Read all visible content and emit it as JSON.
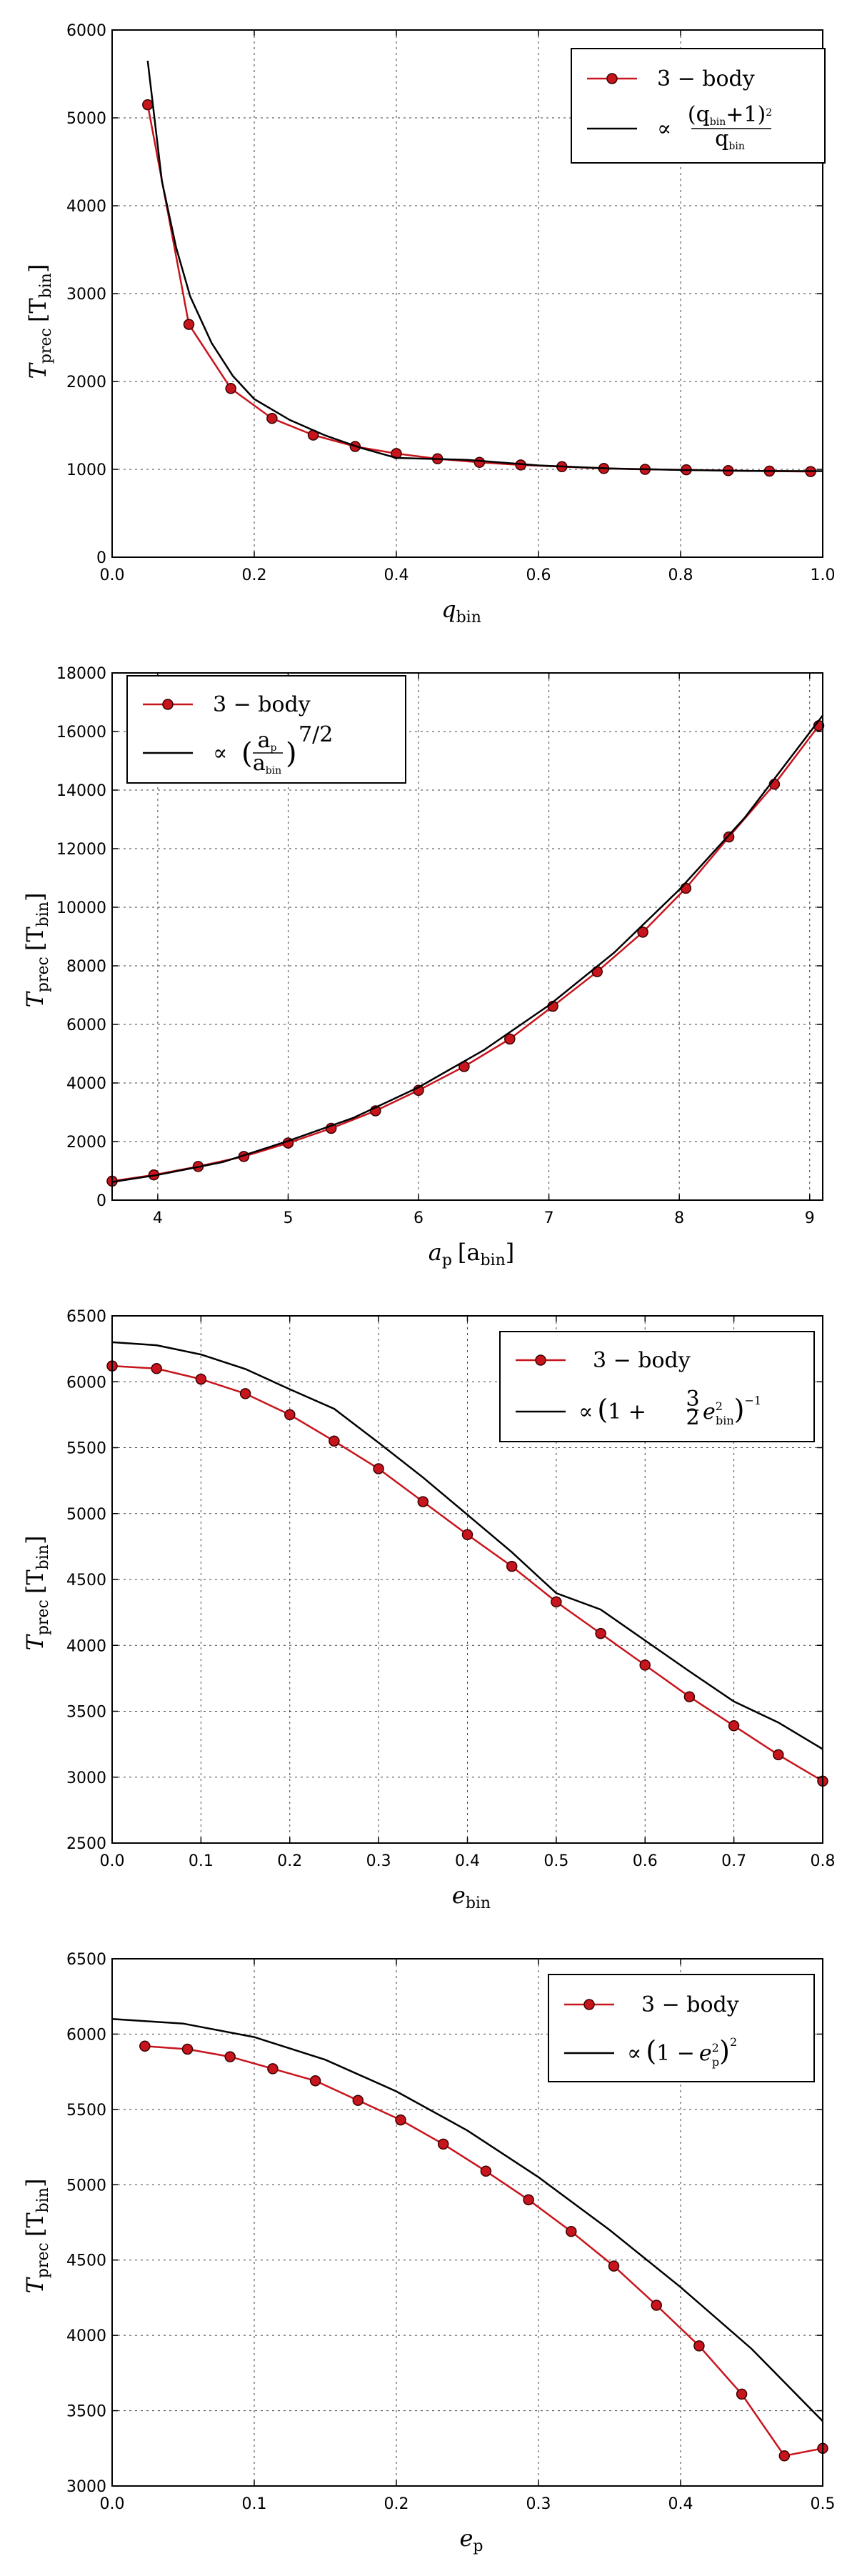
{
  "chart_data": [
    {
      "type": "line",
      "xlabel": "q",
      "xlabel_sub": "bin",
      "ylabel": "T",
      "ylabel_sub": "prec",
      "ylabel_unit": "[T",
      "ylabel_unit_sub": "bin",
      "ylabel_unit_close": "]",
      "xlim": [
        0.0,
        1.0
      ],
      "ylim": [
        0,
        6000
      ],
      "xticks": [
        0.0,
        0.2,
        0.4,
        0.6,
        0.8,
        1.0
      ],
      "xtick_labels": [
        "0.0",
        "0.2",
        "0.4",
        "0.6",
        "0.8",
        "1.0"
      ],
      "yticks": [
        0,
        1000,
        2000,
        3000,
        4000,
        5000,
        6000
      ],
      "ytick_labels": [
        "0",
        "1000",
        "2000",
        "3000",
        "4000",
        "5000",
        "6000"
      ],
      "grid": true,
      "legend_position": "top-right",
      "series": [
        {
          "name": "3 − body",
          "kind": "markers-line",
          "color": "#c8141c",
          "x": [
            0.05,
            0.108,
            0.167,
            0.225,
            0.283,
            0.342,
            0.4,
            0.458,
            0.517,
            0.575,
            0.633,
            0.692,
            0.75,
            0.808,
            0.867,
            0.925,
            0.983
          ],
          "y": [
            5150,
            2650,
            1920,
            1580,
            1390,
            1260,
            1180,
            1120,
            1080,
            1050,
            1030,
            1010,
            1000,
            995,
            985,
            980,
            975
          ]
        },
        {
          "name": "∝ (q_bin+1)² / q_bin",
          "kind": "line",
          "color": "#000000",
          "x": [
            0.05,
            0.07,
            0.09,
            0.11,
            0.14,
            0.17,
            0.2,
            0.25,
            0.3,
            0.35,
            0.4,
            0.5,
            0.6,
            0.7,
            0.8,
            0.9,
            1.0
          ],
          "y": [
            5650,
            4280,
            3525,
            2966,
            2437,
            2063,
            1800,
            1562,
            1385,
            1244,
            1130,
            1108,
            1045,
            1010,
            993,
            982,
            980
          ]
        }
      ],
      "legend": {
        "entries": [
          "3 − body",
          "∝"
        ],
        "fit_num": "(q",
        "fit_num_sub": "bin",
        "fit_num_tail": "+1)",
        "fit_num_sup": "2",
        "fit_den": "q",
        "fit_den_sub": "bin"
      }
    },
    {
      "type": "line",
      "xlabel": "a",
      "xlabel_sub": "p",
      "xlabel_unit": "[a",
      "xlabel_unit_sub": "bin",
      "xlabel_unit_close": "]",
      "ylabel": "T",
      "ylabel_sub": "prec",
      "ylabel_unit": "[T",
      "ylabel_unit_sub": "bin",
      "ylabel_unit_close": "]",
      "xlim": [
        3.65,
        9.1
      ],
      "ylim": [
        0,
        18000
      ],
      "xticks": [
        4,
        5,
        6,
        7,
        8,
        9
      ],
      "xtick_labels": [
        "4",
        "5",
        "6",
        "7",
        "8",
        "9"
      ],
      "yticks": [
        0,
        2000,
        4000,
        6000,
        8000,
        10000,
        12000,
        14000,
        16000,
        18000
      ],
      "ytick_labels": [
        "0",
        "2000",
        "4000",
        "6000",
        "8000",
        "10000",
        "12000",
        "14000",
        "16000",
        "18000"
      ],
      "grid": true,
      "legend_position": "top-left",
      "series": [
        {
          "name": "3 − body",
          "kind": "markers-line",
          "color": "#c8141c",
          "x": [
            3.65,
            3.97,
            4.31,
            4.66,
            5.0,
            5.33,
            5.67,
            6.0,
            6.35,
            6.7,
            7.03,
            7.37,
            7.72,
            8.05,
            8.38,
            8.73,
            9.07
          ],
          "y": [
            650,
            860,
            1150,
            1490,
            1950,
            2450,
            3050,
            3750,
            4560,
            5500,
            6620,
            7800,
            9150,
            10650,
            12400,
            14200,
            16200
          ]
        },
        {
          "name": "∝ (a_p / a_bin)^(7/2)",
          "kind": "line",
          "color": "#000000",
          "x": [
            3.65,
            4.0,
            4.5,
            5.0,
            5.5,
            6.0,
            6.5,
            7.0,
            7.5,
            8.0,
            8.5,
            9.1
          ],
          "y": [
            620,
            860,
            1300,
            2020,
            2810,
            3850,
            5120,
            6650,
            8450,
            10600,
            13050,
            16550
          ]
        }
      ],
      "legend": {
        "entries": [
          "3 − body",
          "∝"
        ],
        "fit_num": "a",
        "fit_num_sub": "p",
        "fit_den": "a",
        "fit_den_sub": "bin",
        "fit_exp": "7/2"
      }
    },
    {
      "type": "line",
      "xlabel": "e",
      "xlabel_sub": "bin",
      "ylabel": "T",
      "ylabel_sub": "prec",
      "ylabel_unit": "[T",
      "ylabel_unit_sub": "bin",
      "ylabel_unit_close": "]",
      "xlim": [
        0.0,
        0.8
      ],
      "ylim": [
        2500,
        6500
      ],
      "xticks": [
        0.0,
        0.1,
        0.2,
        0.3,
        0.4,
        0.5,
        0.6,
        0.7,
        0.8
      ],
      "xtick_labels": [
        "0.0",
        "0.1",
        "0.2",
        "0.3",
        "0.4",
        "0.5",
        "0.6",
        "0.7",
        "0.8"
      ],
      "yticks": [
        2500,
        3000,
        3500,
        4000,
        4500,
        5000,
        5500,
        6000,
        6500
      ],
      "ytick_labels": [
        "2500",
        "3000",
        "3500",
        "4000",
        "4500",
        "5000",
        "5500",
        "6000",
        "6500"
      ],
      "grid": true,
      "legend_position": "top-right",
      "series": [
        {
          "name": "3 − body",
          "kind": "markers-line",
          "color": "#c8141c",
          "x": [
            0.0,
            0.05,
            0.1,
            0.15,
            0.2,
            0.25,
            0.3,
            0.35,
            0.4,
            0.45,
            0.5,
            0.55,
            0.6,
            0.65,
            0.7,
            0.75,
            0.8
          ],
          "y": [
            6120,
            6100,
            6020,
            5910,
            5750,
            5550,
            5340,
            5090,
            4840,
            4600,
            4330,
            4090,
            3850,
            3610,
            3390,
            3170,
            2970
          ]
        },
        {
          "name": "∝ (1 + 3/2 e_bin²)^-1",
          "kind": "line",
          "color": "#000000",
          "x": [
            0.0,
            0.05,
            0.1,
            0.15,
            0.2,
            0.25,
            0.3,
            0.35,
            0.4,
            0.45,
            0.5,
            0.55,
            0.6,
            0.65,
            0.7,
            0.75,
            0.8
          ],
          "y": [
            6300,
            6277,
            6207,
            6097,
            5943,
            5795,
            5538,
            5274,
            4991,
            4707,
            4396,
            4272,
            4037,
            3803,
            3574,
            3415,
            3213
          ]
        }
      ],
      "legend": {
        "entries": [
          "3 − body",
          "∝"
        ],
        "fit_inner": "1 +",
        "fit_frac_num": "3",
        "fit_frac_den": "2",
        "fit_var": "e",
        "fit_var_sup": "2",
        "fit_var_sub": "bin",
        "fit_exp": "−1"
      }
    },
    {
      "type": "line",
      "xlabel": "e",
      "xlabel_sub": "p",
      "ylabel": "T",
      "ylabel_sub": "prec",
      "ylabel_unit": "[T",
      "ylabel_unit_sub": "bin",
      "ylabel_unit_close": "]",
      "xlim": [
        0.0,
        0.5
      ],
      "ylim": [
        3000,
        6500
      ],
      "xticks": [
        0.0,
        0.1,
        0.2,
        0.3,
        0.4,
        0.5
      ],
      "xtick_labels": [
        "0.0",
        "0.1",
        "0.2",
        "0.3",
        "0.4",
        "0.5"
      ],
      "yticks": [
        3000,
        3500,
        4000,
        4500,
        5000,
        5500,
        6000,
        6500
      ],
      "ytick_labels": [
        "3000",
        "3500",
        "4000",
        "4500",
        "5000",
        "5500",
        "6000",
        "6500"
      ],
      "grid": true,
      "legend_position": "top-right",
      "series": [
        {
          "name": "3 − body",
          "kind": "markers-line",
          "color": "#c8141c",
          "x": [
            0.023,
            0.053,
            0.083,
            0.113,
            0.143,
            0.173,
            0.203,
            0.233,
            0.263,
            0.293,
            0.323,
            0.353,
            0.383,
            0.413,
            0.443,
            0.473,
            0.5
          ],
          "y": [
            5920,
            5900,
            5850,
            5770,
            5690,
            5560,
            5430,
            5270,
            5090,
            4900,
            4690,
            4460,
            4200,
            3930,
            3610,
            3200,
            3250
          ]
        },
        {
          "name": "∝ (1 − e_p²)²",
          "kind": "line",
          "color": "#000000",
          "x": [
            0.0,
            0.05,
            0.1,
            0.15,
            0.2,
            0.25,
            0.3,
            0.35,
            0.4,
            0.45,
            0.5
          ],
          "y": [
            6100,
            6070,
            5980,
            5830,
            5620,
            5360,
            5050,
            4700,
            4320,
            3910,
            3430
          ]
        }
      ],
      "legend": {
        "entries": [
          "3 − body",
          "∝"
        ],
        "fit_inner": "1 −",
        "fit_var": "e",
        "fit_var_sup": "2",
        "fit_var_sub": "p",
        "fit_exp": "2"
      }
    }
  ]
}
